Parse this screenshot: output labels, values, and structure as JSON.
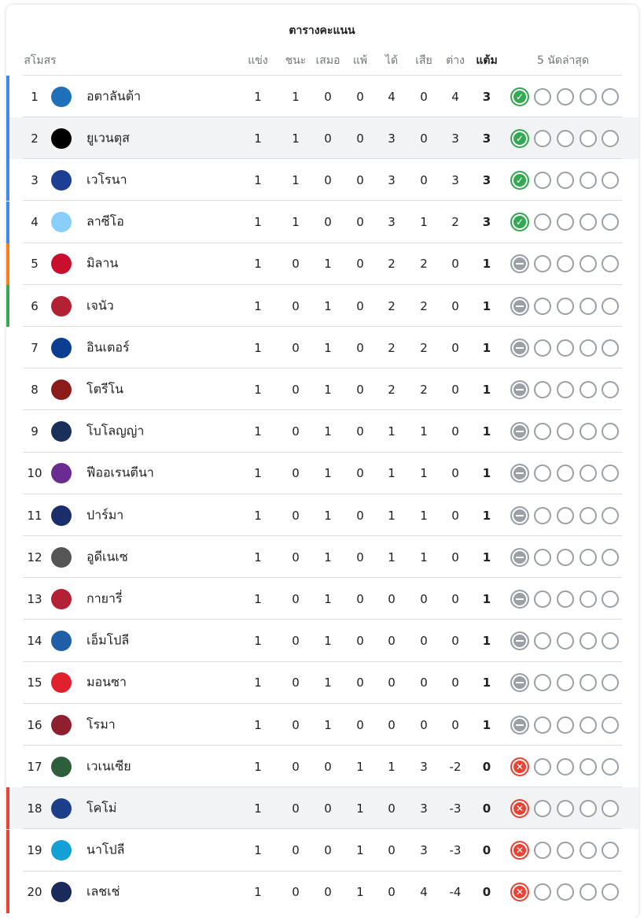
{
  "title": "ตารางคะแนน",
  "headers": {
    "club": "สโมสร",
    "played": "แข่ง",
    "won": "ชนะ",
    "drawn": "เสมอ",
    "lost": "แพ้",
    "gf": "ได้",
    "ga": "เสีย",
    "gd": "ต่าง",
    "pts": "แต้ม",
    "form": "5 นัดล่าสุด"
  },
  "colors": {
    "champions": "#4285f4",
    "europa": "#fa7b17",
    "conference": "#34a853",
    "relegation": "#ea4335",
    "win": "#34a853",
    "draw": "#9aa0a6",
    "loss": "#ea4335"
  },
  "rows": [
    {
      "rank": "1",
      "name": "อตาลันต้า",
      "p": "1",
      "w": "1",
      "d": "0",
      "l": "0",
      "gf": "4",
      "ga": "0",
      "gd": "4",
      "pts": "3",
      "zone": "champions",
      "form": [
        "W",
        "",
        "",
        "",
        ""
      ],
      "logo": "#1e71b8",
      "hl": false
    },
    {
      "rank": "2",
      "name": "ยูเวนตุส",
      "p": "1",
      "w": "1",
      "d": "0",
      "l": "0",
      "gf": "3",
      "ga": "0",
      "gd": "3",
      "pts": "3",
      "zone": "champions",
      "form": [
        "W",
        "",
        "",
        "",
        ""
      ],
      "logo": "#000000",
      "hl": true
    },
    {
      "rank": "3",
      "name": "เวโรนา",
      "p": "1",
      "w": "1",
      "d": "0",
      "l": "0",
      "gf": "3",
      "ga": "0",
      "gd": "3",
      "pts": "3",
      "zone": "champions",
      "form": [
        "W",
        "",
        "",
        "",
        ""
      ],
      "logo": "#1c3f94",
      "hl": false
    },
    {
      "rank": "4",
      "name": "ลาซีโอ",
      "p": "1",
      "w": "1",
      "d": "0",
      "l": "0",
      "gf": "3",
      "ga": "1",
      "gd": "2",
      "pts": "3",
      "zone": "champions",
      "form": [
        "W",
        "",
        "",
        "",
        ""
      ],
      "logo": "#87cefa",
      "hl": false
    },
    {
      "rank": "5",
      "name": "มิลาน",
      "p": "1",
      "w": "0",
      "d": "1",
      "l": "0",
      "gf": "2",
      "ga": "2",
      "gd": "0",
      "pts": "1",
      "zone": "europa",
      "form": [
        "D",
        "",
        "",
        "",
        ""
      ],
      "logo": "#c8102e",
      "hl": false
    },
    {
      "rank": "6",
      "name": "เจนัว",
      "p": "1",
      "w": "0",
      "d": "1",
      "l": "0",
      "gf": "2",
      "ga": "2",
      "gd": "0",
      "pts": "1",
      "zone": "conference",
      "form": [
        "D",
        "",
        "",
        "",
        ""
      ],
      "logo": "#b22234",
      "hl": false
    },
    {
      "rank": "7",
      "name": "อินเตอร์",
      "p": "1",
      "w": "0",
      "d": "1",
      "l": "0",
      "gf": "2",
      "ga": "2",
      "gd": "0",
      "pts": "1",
      "zone": "",
      "form": [
        "D",
        "",
        "",
        "",
        ""
      ],
      "logo": "#0b3d91",
      "hl": false
    },
    {
      "rank": "8",
      "name": "โตรีโน",
      "p": "1",
      "w": "0",
      "d": "1",
      "l": "0",
      "gf": "2",
      "ga": "2",
      "gd": "0",
      "pts": "1",
      "zone": "",
      "form": [
        "D",
        "",
        "",
        "",
        ""
      ],
      "logo": "#8b1a1a",
      "hl": false
    },
    {
      "rank": "9",
      "name": "โบโลญญ่า",
      "p": "1",
      "w": "0",
      "d": "1",
      "l": "0",
      "gf": "1",
      "ga": "1",
      "gd": "0",
      "pts": "1",
      "zone": "",
      "form": [
        "D",
        "",
        "",
        "",
        ""
      ],
      "logo": "#1a2f5a",
      "hl": false
    },
    {
      "rank": "10",
      "name": "ฟีออเรนตีนา",
      "p": "1",
      "w": "0",
      "d": "1",
      "l": "0",
      "gf": "1",
      "ga": "1",
      "gd": "0",
      "pts": "1",
      "zone": "",
      "form": [
        "D",
        "",
        "",
        "",
        ""
      ],
      "logo": "#6a2c91",
      "hl": false
    },
    {
      "rank": "11",
      "name": "ปาร์มา",
      "p": "1",
      "w": "0",
      "d": "1",
      "l": "0",
      "gf": "1",
      "ga": "1",
      "gd": "0",
      "pts": "1",
      "zone": "",
      "form": [
        "D",
        "",
        "",
        "",
        ""
      ],
      "logo": "#1a2f6a",
      "hl": false
    },
    {
      "rank": "12",
      "name": "อูดีเนเซ",
      "p": "1",
      "w": "0",
      "d": "1",
      "l": "0",
      "gf": "1",
      "ga": "1",
      "gd": "0",
      "pts": "1",
      "zone": "",
      "form": [
        "D",
        "",
        "",
        "",
        ""
      ],
      "logo": "#555555",
      "hl": false
    },
    {
      "rank": "13",
      "name": "กายารี่",
      "p": "1",
      "w": "0",
      "d": "1",
      "l": "0",
      "gf": "0",
      "ga": "0",
      "gd": "0",
      "pts": "1",
      "zone": "",
      "form": [
        "D",
        "",
        "",
        "",
        ""
      ],
      "logo": "#b22234",
      "hl": false
    },
    {
      "rank": "14",
      "name": "เอ็มโปลี",
      "p": "1",
      "w": "0",
      "d": "1",
      "l": "0",
      "gf": "0",
      "ga": "0",
      "gd": "0",
      "pts": "1",
      "zone": "",
      "form": [
        "D",
        "",
        "",
        "",
        ""
      ],
      "logo": "#1f5fa8",
      "hl": false
    },
    {
      "rank": "15",
      "name": "มอนซา",
      "p": "1",
      "w": "0",
      "d": "1",
      "l": "0",
      "gf": "0",
      "ga": "0",
      "gd": "0",
      "pts": "1",
      "zone": "",
      "form": [
        "D",
        "",
        "",
        "",
        ""
      ],
      "logo": "#e0202c",
      "hl": false
    },
    {
      "rank": "16",
      "name": "โรมา",
      "p": "1",
      "w": "0",
      "d": "1",
      "l": "0",
      "gf": "0",
      "ga": "0",
      "gd": "0",
      "pts": "1",
      "zone": "",
      "form": [
        "D",
        "",
        "",
        "",
        ""
      ],
      "logo": "#8e1f2f",
      "hl": false
    },
    {
      "rank": "17",
      "name": "เวเนเซีย",
      "p": "1",
      "w": "0",
      "d": "0",
      "l": "1",
      "gf": "1",
      "ga": "3",
      "gd": "-2",
      "pts": "0",
      "zone": "",
      "form": [
        "L",
        "",
        "",
        "",
        ""
      ],
      "logo": "#2e5e3a",
      "hl": false
    },
    {
      "rank": "18",
      "name": "โคโม่",
      "p": "1",
      "w": "0",
      "d": "0",
      "l": "1",
      "gf": "0",
      "ga": "3",
      "gd": "-3",
      "pts": "0",
      "zone": "relegation",
      "form": [
        "L",
        "",
        "",
        "",
        ""
      ],
      "logo": "#1d3f8a",
      "hl": true
    },
    {
      "rank": "19",
      "name": "นาโปลี",
      "p": "1",
      "w": "0",
      "d": "0",
      "l": "1",
      "gf": "0",
      "ga": "3",
      "gd": "-3",
      "pts": "0",
      "zone": "relegation",
      "form": [
        "L",
        "",
        "",
        "",
        ""
      ],
      "logo": "#12a0d7",
      "hl": false
    },
    {
      "rank": "20",
      "name": "เลชเช่",
      "p": "1",
      "w": "0",
      "d": "0",
      "l": "1",
      "gf": "0",
      "ga": "4",
      "gd": "-4",
      "pts": "0",
      "zone": "relegation",
      "form": [
        "L",
        "",
        "",
        "",
        ""
      ],
      "logo": "#1a2a5a",
      "hl": false
    }
  ]
}
